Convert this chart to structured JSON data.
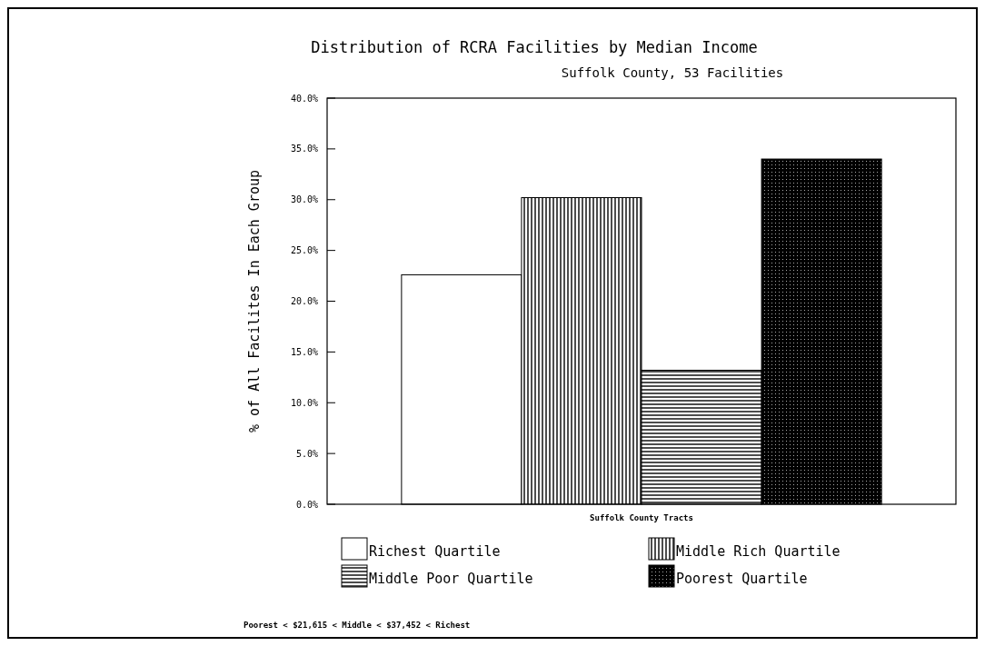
{
  "chart_data": {
    "type": "bar",
    "title": "Distribution of RCRA Facilities by Median Income",
    "subtitle": "Suffolk County, 53 Facilities",
    "ylabel": "% of All Facilites In Each Group",
    "xlabel": "Suffolk County Tracts",
    "categories": [
      null
    ],
    "series": [
      {
        "name": "Richest Quartile",
        "color": "#ffffff",
        "values": [
          22.6
        ]
      },
      {
        "name": "Middle Rich Quartile",
        "color": "#000000",
        "values": [
          30.2
        ]
      },
      {
        "name": "Middle Poor Quartile",
        "color": "#000000",
        "values": [
          13.2
        ]
      },
      {
        "name": "Poorest Quartile",
        "color": "#000000",
        "values": [
          34.0
        ]
      }
    ],
    "ylim": [
      0,
      40
    ],
    "yticks": [
      {
        "value": 0,
        "label": "0.0%"
      },
      {
        "value": 5,
        "label": "5.0%"
      },
      {
        "value": 10,
        "label": "10.0%"
      },
      {
        "value": 15,
        "label": "15.0%"
      },
      {
        "value": 20,
        "label": "20.0%"
      },
      {
        "value": 25,
        "label": "25.0%"
      },
      {
        "value": 30,
        "label": "30.0%"
      },
      {
        "value": 35,
        "label": "35.0%"
      },
      {
        "value": 40,
        "label": "40.0%"
      }
    ],
    "grid": false,
    "legend": "bottom",
    "annotations": [
      "Poorest < $21,615 < Middle < $37,452 < Richest"
    ]
  }
}
